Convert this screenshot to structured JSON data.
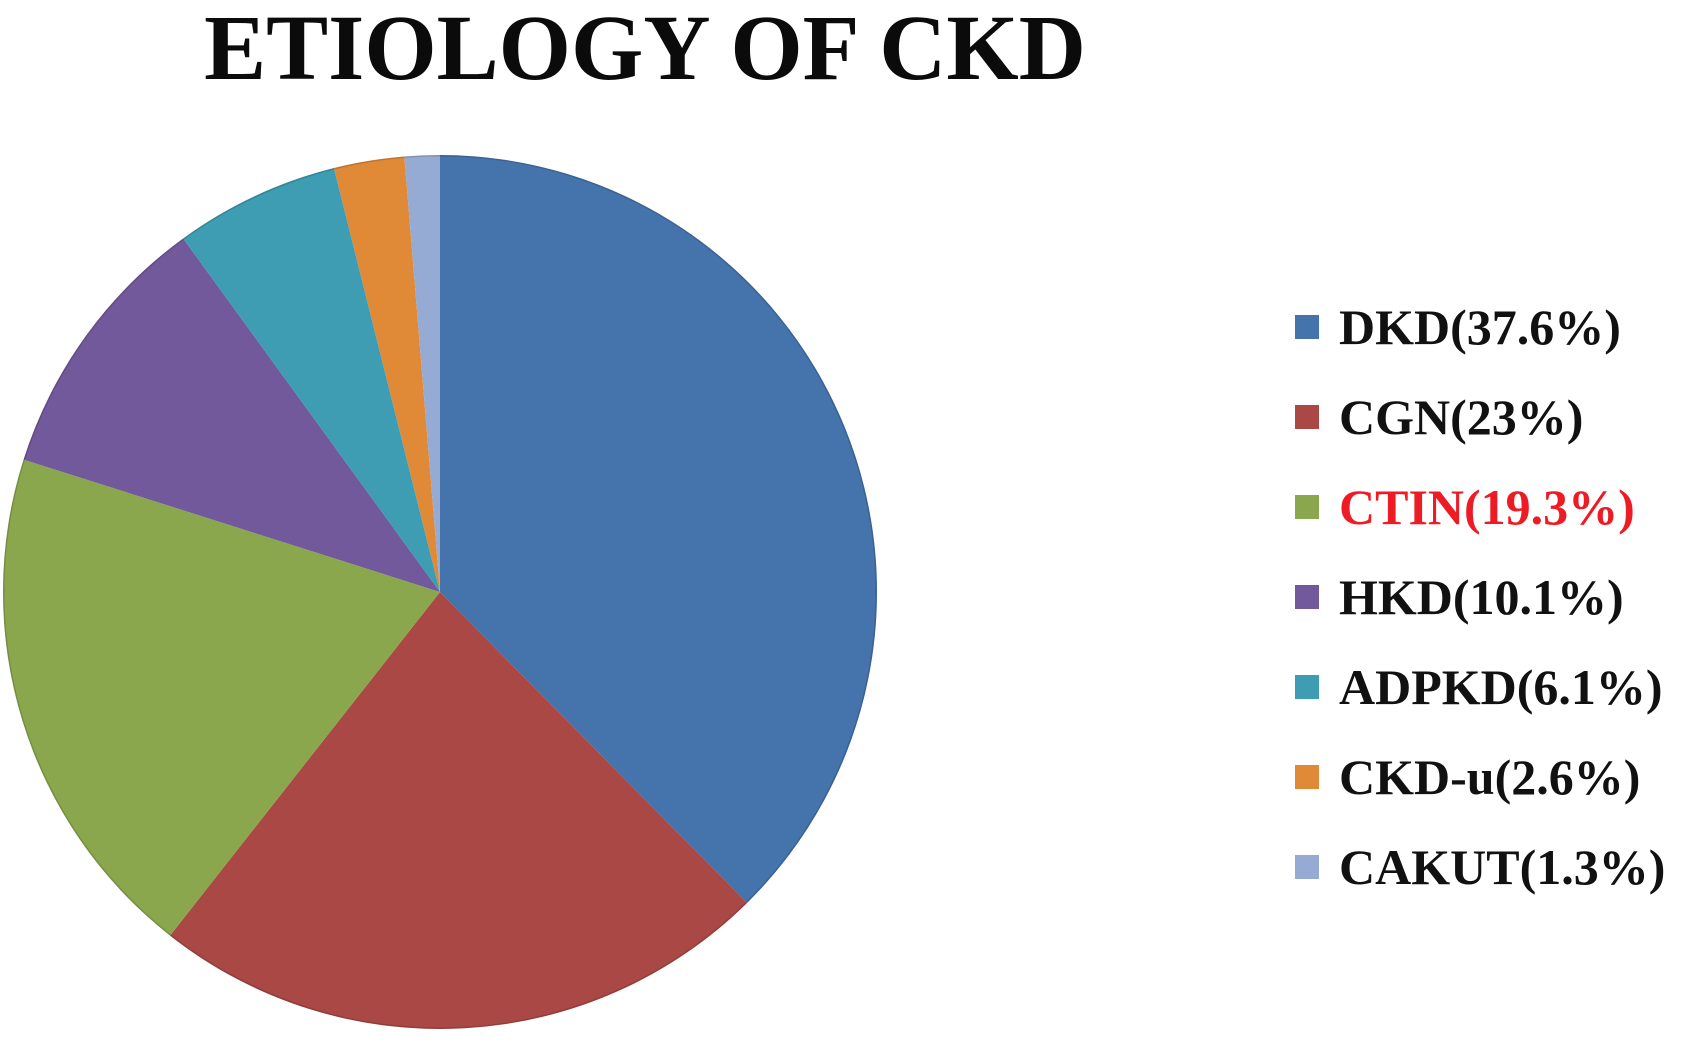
{
  "title": "ETIOLOGY OF CKD",
  "chart_data": {
    "type": "pie",
    "title": "ETIOLOGY OF CKD",
    "categories": [
      "DKD",
      "CGN",
      "CTIN",
      "HKD",
      "ADPKD",
      "CKD-u",
      "CAKUT"
    ],
    "values": [
      37.6,
      23,
      19.3,
      10.1,
      6.1,
      2.6,
      1.3
    ],
    "unit": "%",
    "colors": [
      "#4573AB",
      "#A94845",
      "#8AA74D",
      "#71599B",
      "#3E9DB3",
      "#E08937",
      "#96ABD4"
    ],
    "start_angle_deg": 0,
    "direction": "clockwise",
    "grid": false,
    "legend": {
      "position": "right",
      "entries": [
        {
          "label": "DKD(37.6%)",
          "text_color": "#111111"
        },
        {
          "label": "CGN(23%)",
          "text_color": "#111111"
        },
        {
          "label": "CTIN(19.3%)",
          "text_color": "#ED1C24"
        },
        {
          "label": "HKD(10.1%)",
          "text_color": "#111111"
        },
        {
          "label": "ADPKD(6.1%)",
          "text_color": "#111111"
        },
        {
          "label": "CKD-u(2.6%)",
          "text_color": "#111111"
        },
        {
          "label": "CAKUT(1.3%)",
          "text_color": "#111111"
        }
      ]
    }
  }
}
